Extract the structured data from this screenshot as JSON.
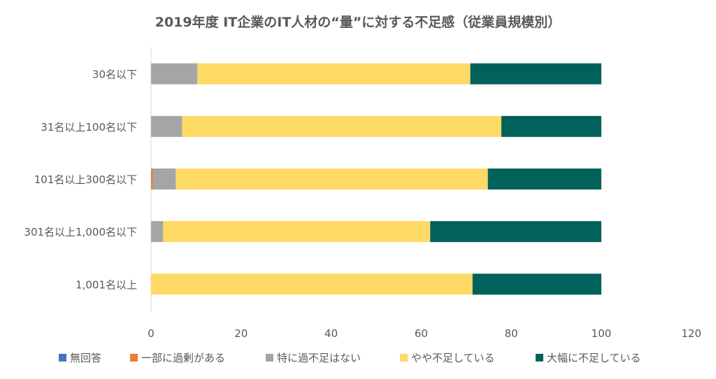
{
  "chart_data": {
    "type": "bar",
    "orientation": "horizontal",
    "stacked": true,
    "title": "2019年度 IT企業のIT人材の“量”に対する不足感（従業員規模別）",
    "categories": [
      "30名以下",
      "31名以上100名以下",
      "101名以上300名以下",
      "301名以上1,000名以下",
      "1,001名以上"
    ],
    "series": [
      {
        "name": "無回答",
        "color": "#4472c4",
        "values": [
          0,
          0,
          0,
          0,
          0
        ]
      },
      {
        "name": "一部に過剰がある",
        "color": "#ed7d31",
        "values": [
          0,
          0,
          0.4,
          0,
          0
        ]
      },
      {
        "name": "特に過不足はない",
        "color": "#a5a5a5",
        "values": [
          10.3,
          6.9,
          5.1,
          2.7,
          0
        ]
      },
      {
        "name": "やや不足している",
        "color": "#ffd966",
        "values": [
          60.6,
          70.9,
          69.3,
          59.3,
          71.4
        ]
      },
      {
        "name": "大幅に不足している",
        "color": "#00625a",
        "values": [
          29.1,
          22.2,
          25.2,
          38.0,
          28.6
        ]
      }
    ],
    "xlim": [
      0,
      120
    ],
    "xticks": [
      0,
      20,
      40,
      60,
      80,
      100,
      120
    ],
    "grid": false,
    "legend": "bottom"
  }
}
